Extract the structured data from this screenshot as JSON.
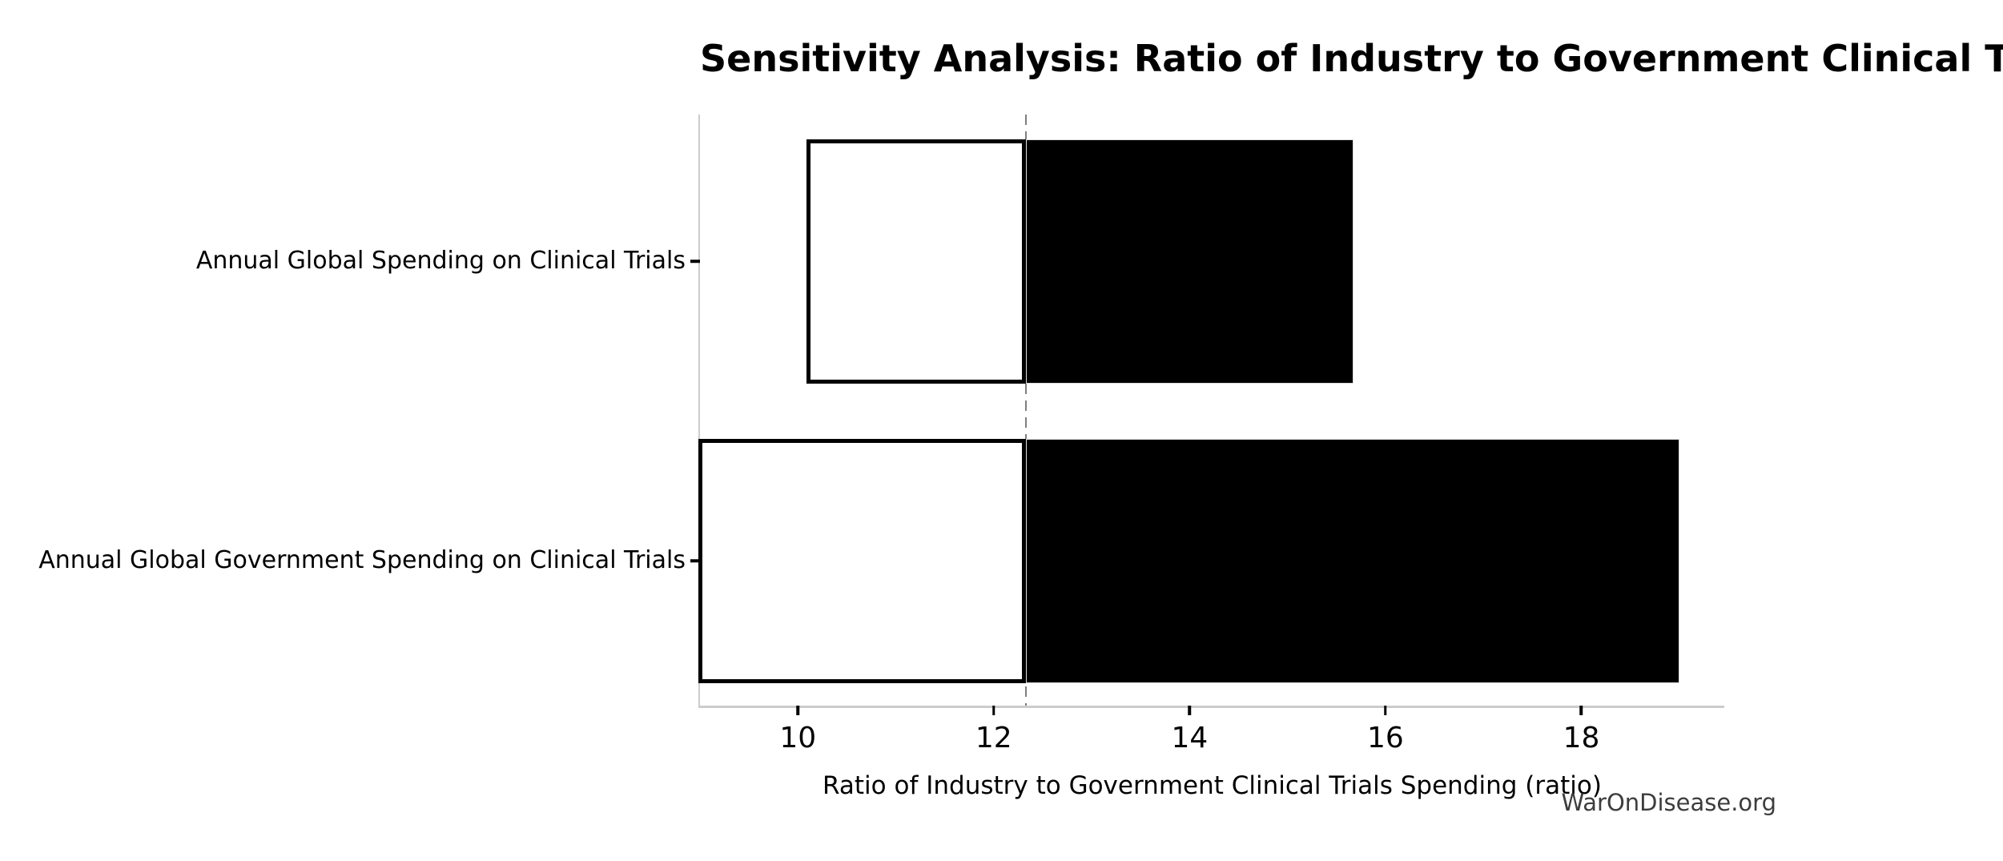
{
  "title": "Sensitivity Analysis: Ratio of Industry to Government Clinical Trials Spending",
  "watermark": "WarOnDisease.org",
  "chart_data": {
    "type": "bar",
    "subtype": "tornado-sensitivity",
    "orientation": "horizontal",
    "title": "Sensitivity Analysis: Ratio of Industry to Government Clinical Trials Spending",
    "xlabel": "Ratio of Industry to Government Clinical Trials Spending (ratio)",
    "ylabel": "",
    "categories": [
      "Annual Global Spending on Clinical Trials",
      "Annual Global Government Spending on Clinical Trials"
    ],
    "base_value": 12.33,
    "rows": [
      {
        "label": "Annual Global Spending on Clinical Trials",
        "low": 10.11,
        "high": 15.67
      },
      {
        "label": "Annual Global Government Spending on Clinical Trials",
        "low": 9.0,
        "high": 19.0
      }
    ],
    "xlim": [
      9.0,
      19.46
    ],
    "xticks": [
      10,
      12,
      14,
      16,
      18
    ],
    "grid": false,
    "legend": "none",
    "colors": {
      "low_segment_fill": "#ffffff",
      "low_segment_edge": "#000000",
      "high_segment_fill": "#000000",
      "high_segment_edge": "#dddddd",
      "baseline_dash": "#7f7f7f",
      "spine": "#cccccc",
      "tick": "#000000",
      "text": "#000000",
      "watermark": "#3d3d3d"
    }
  }
}
